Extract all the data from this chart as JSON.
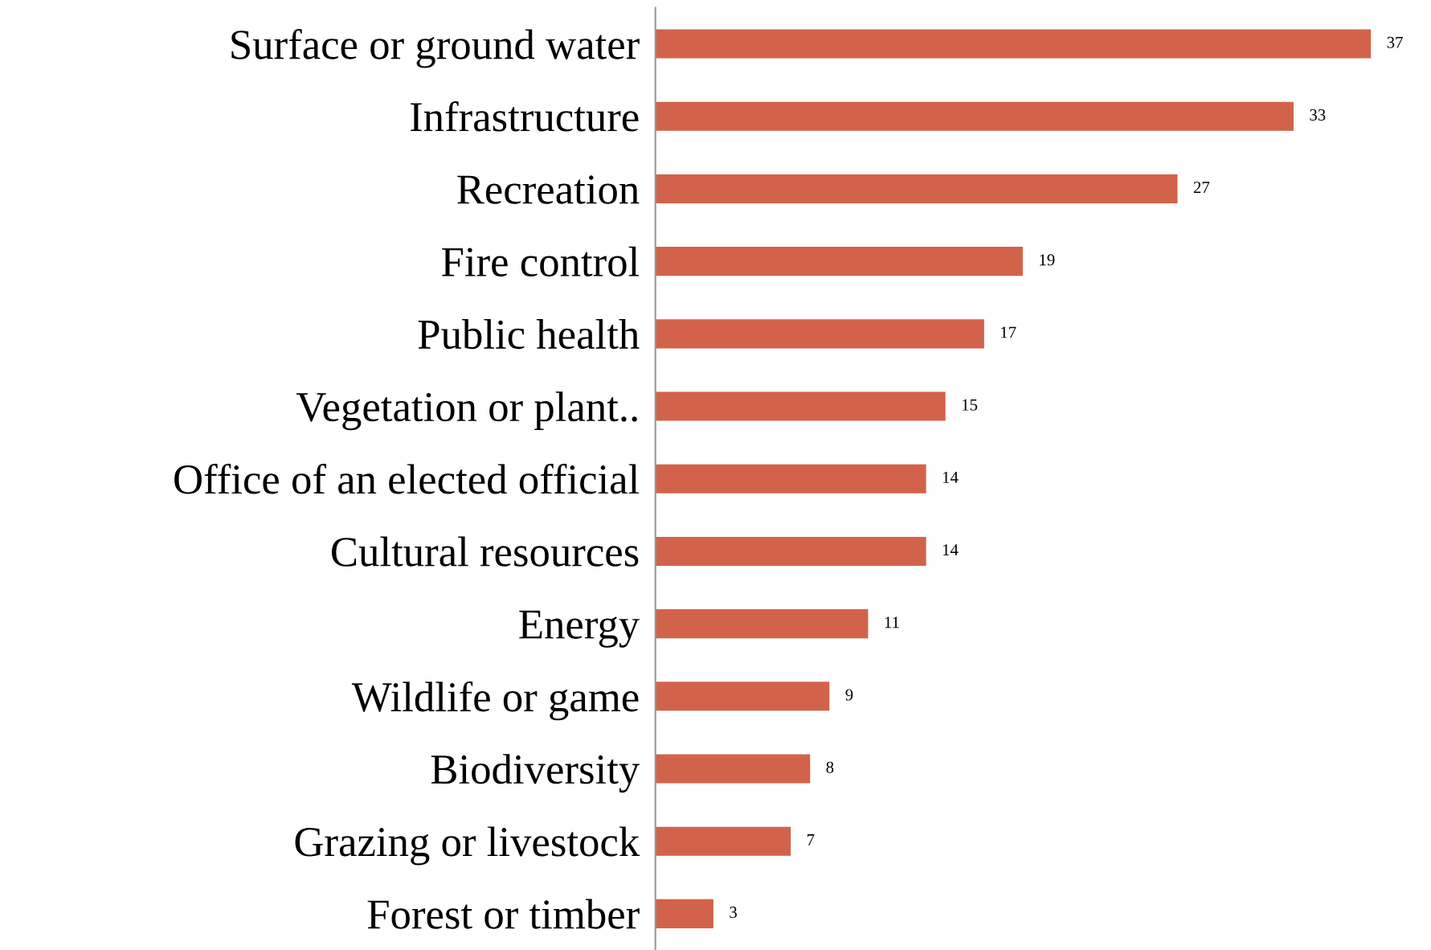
{
  "chart_data": {
    "type": "bar",
    "orientation": "horizontal",
    "categories": [
      "Surface or ground water",
      "Infrastructure",
      "Recreation",
      "Fire control",
      "Public health",
      "Vegetation or plant..",
      "Office of an elected official",
      "Cultural resources",
      "Energy",
      "Wildlife or game",
      "Biodiversity",
      "Grazing or livestock",
      "Forest or timber"
    ],
    "values": [
      37,
      33,
      27,
      19,
      17,
      15,
      14,
      14,
      11,
      9,
      8,
      7,
      3
    ],
    "color": "#d2634a",
    "data_labels": true,
    "grid": false,
    "legend": false
  }
}
